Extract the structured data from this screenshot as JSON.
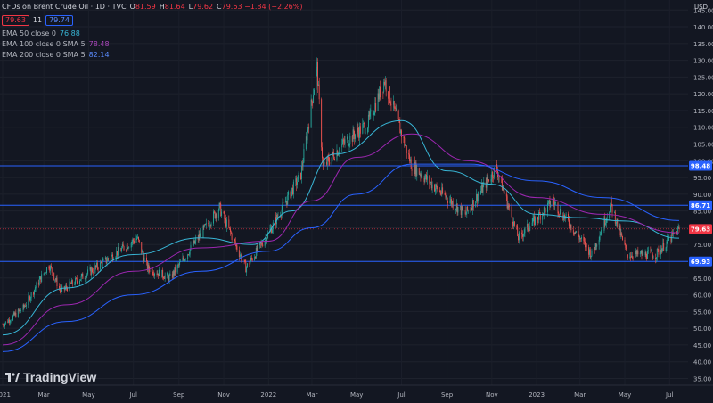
{
  "header": {
    "title": "CFDs on Brent Crude Oil · 1D · TVC",
    "ohlc": [
      {
        "label": "O",
        "value": "81.59"
      },
      {
        "label": "H",
        "value": "81.64"
      },
      {
        "label": "L",
        "value": "79.62"
      },
      {
        "label": "C",
        "value": "79.63 −1.84 (−2.26%)"
      }
    ],
    "sell_price": "79.63",
    "spread": "11",
    "buy_price": "79.74"
  },
  "indicators": [
    {
      "name": "EMA 50 close 0",
      "value": "76.88",
      "color": "#38b6d6"
    },
    {
      "name": "EMA 100 close 0 SMA 5",
      "value": "78.48",
      "color": "#9c27b0"
    },
    {
      "name": "EMA 200 close 0 SMA 5",
      "value": "82.14",
      "color": "#2962ff"
    }
  ],
  "currency": "USD",
  "logo_text": "TradingView",
  "colors": {
    "background": "#131722",
    "up": "#26a69a",
    "down": "#ef5350",
    "level_line": "#2962ff",
    "last_price": "#f23645",
    "ema50": "#38b6d6",
    "ema100": "#9c27b0",
    "ema200": "#2962ff"
  },
  "chart_data": {
    "type": "candlestick",
    "y_ticks": [
      "145.00",
      "140.00",
      "135.00",
      "130.00",
      "125.00",
      "120.00",
      "115.00",
      "110.00",
      "105.00",
      "100.00",
      "95.00",
      "90.00",
      "85.00",
      "80.00",
      "75.00",
      "70.00",
      "65.00",
      "60.00",
      "55.00",
      "50.00",
      "45.00",
      "40.00",
      "35.00"
    ],
    "x_ticks": [
      "2021",
      "Mar",
      "May",
      "Jul",
      "Sep",
      "Nov",
      "2022",
      "Mar",
      "May",
      "Jul",
      "Sep",
      "Nov",
      "2023",
      "Mar",
      "May",
      "Jul"
    ],
    "ylim": [
      33,
      148
    ],
    "x_range": [
      "2021-01-04",
      "2023-07-14"
    ],
    "horizontal_levels": [
      {
        "value": 98.48,
        "label": "98.48"
      },
      {
        "value": 86.71,
        "label": "86.71"
      },
      {
        "value": 69.93,
        "label": "69.93"
      }
    ],
    "last_price": {
      "value": 79.63,
      "label": "79.63"
    },
    "price_path": [
      [
        "2021-01-04",
        51
      ],
      [
        "2021-02-01",
        56
      ],
      [
        "2021-03-08",
        69
      ],
      [
        "2021-03-24",
        61
      ],
      [
        "2021-05-17",
        69
      ],
      [
        "2021-07-06",
        77
      ],
      [
        "2021-07-20",
        68
      ],
      [
        "2021-08-20",
        65
      ],
      [
        "2021-10-26",
        86
      ],
      [
        "2021-12-01",
        68
      ],
      [
        "2021-12-31",
        78
      ],
      [
        "2022-02-14",
        96
      ],
      [
        "2022-03-08",
        128
      ],
      [
        "2022-03-16",
        98
      ],
      [
        "2022-04-12",
        105
      ],
      [
        "2022-05-16",
        111
      ],
      [
        "2022-06-08",
        124
      ],
      [
        "2022-07-14",
        99
      ],
      [
        "2022-08-16",
        92
      ],
      [
        "2022-09-26",
        84
      ],
      [
        "2022-11-07",
        98
      ],
      [
        "2022-12-07",
        77
      ],
      [
        "2023-01-23",
        88
      ],
      [
        "2023-03-17",
        72
      ],
      [
        "2023-04-12",
        87
      ],
      [
        "2023-05-04",
        72
      ],
      [
        "2023-06-12",
        72
      ],
      [
        "2023-07-14",
        79.6
      ]
    ],
    "series": [
      {
        "name": "EMA 50 close 0",
        "values": [
          [
            "2021-01-04",
            48
          ],
          [
            "2021-04-01",
            62
          ],
          [
            "2021-07-01",
            72
          ],
          [
            "2021-10-01",
            77
          ],
          [
            "2021-12-10",
            75
          ],
          [
            "2022-02-01",
            85
          ],
          [
            "2022-04-01",
            102
          ],
          [
            "2022-07-01",
            112
          ],
          [
            "2022-09-01",
            97
          ],
          [
            "2022-11-01",
            93
          ],
          [
            "2023-01-01",
            84
          ],
          [
            "2023-03-01",
            83
          ],
          [
            "2023-05-01",
            82
          ],
          [
            "2023-07-14",
            76.88
          ]
        ]
      },
      {
        "name": "EMA 100 close 0 SMA 5",
        "values": [
          [
            "2021-01-04",
            45
          ],
          [
            "2021-04-01",
            57
          ],
          [
            "2021-07-01",
            67
          ],
          [
            "2021-10-01",
            74
          ],
          [
            "2022-01-01",
            76
          ],
          [
            "2022-03-01",
            88
          ],
          [
            "2022-05-01",
            101
          ],
          [
            "2022-07-15",
            108
          ],
          [
            "2022-10-01",
            100
          ],
          [
            "2023-01-01",
            89
          ],
          [
            "2023-04-01",
            84
          ],
          [
            "2023-07-14",
            78.48
          ]
        ]
      },
      {
        "name": "EMA 200 close 0 SMA 5",
        "values": [
          [
            "2021-01-04",
            43
          ],
          [
            "2021-04-01",
            52
          ],
          [
            "2021-07-01",
            60
          ],
          [
            "2021-10-01",
            67
          ],
          [
            "2022-01-01",
            73
          ],
          [
            "2022-03-01",
            80
          ],
          [
            "2022-05-01",
            90
          ],
          [
            "2022-07-15",
            99
          ],
          [
            "2022-10-01",
            99
          ],
          [
            "2023-01-01",
            94
          ],
          [
            "2023-04-01",
            89
          ],
          [
            "2023-07-14",
            82.14
          ]
        ]
      }
    ]
  }
}
